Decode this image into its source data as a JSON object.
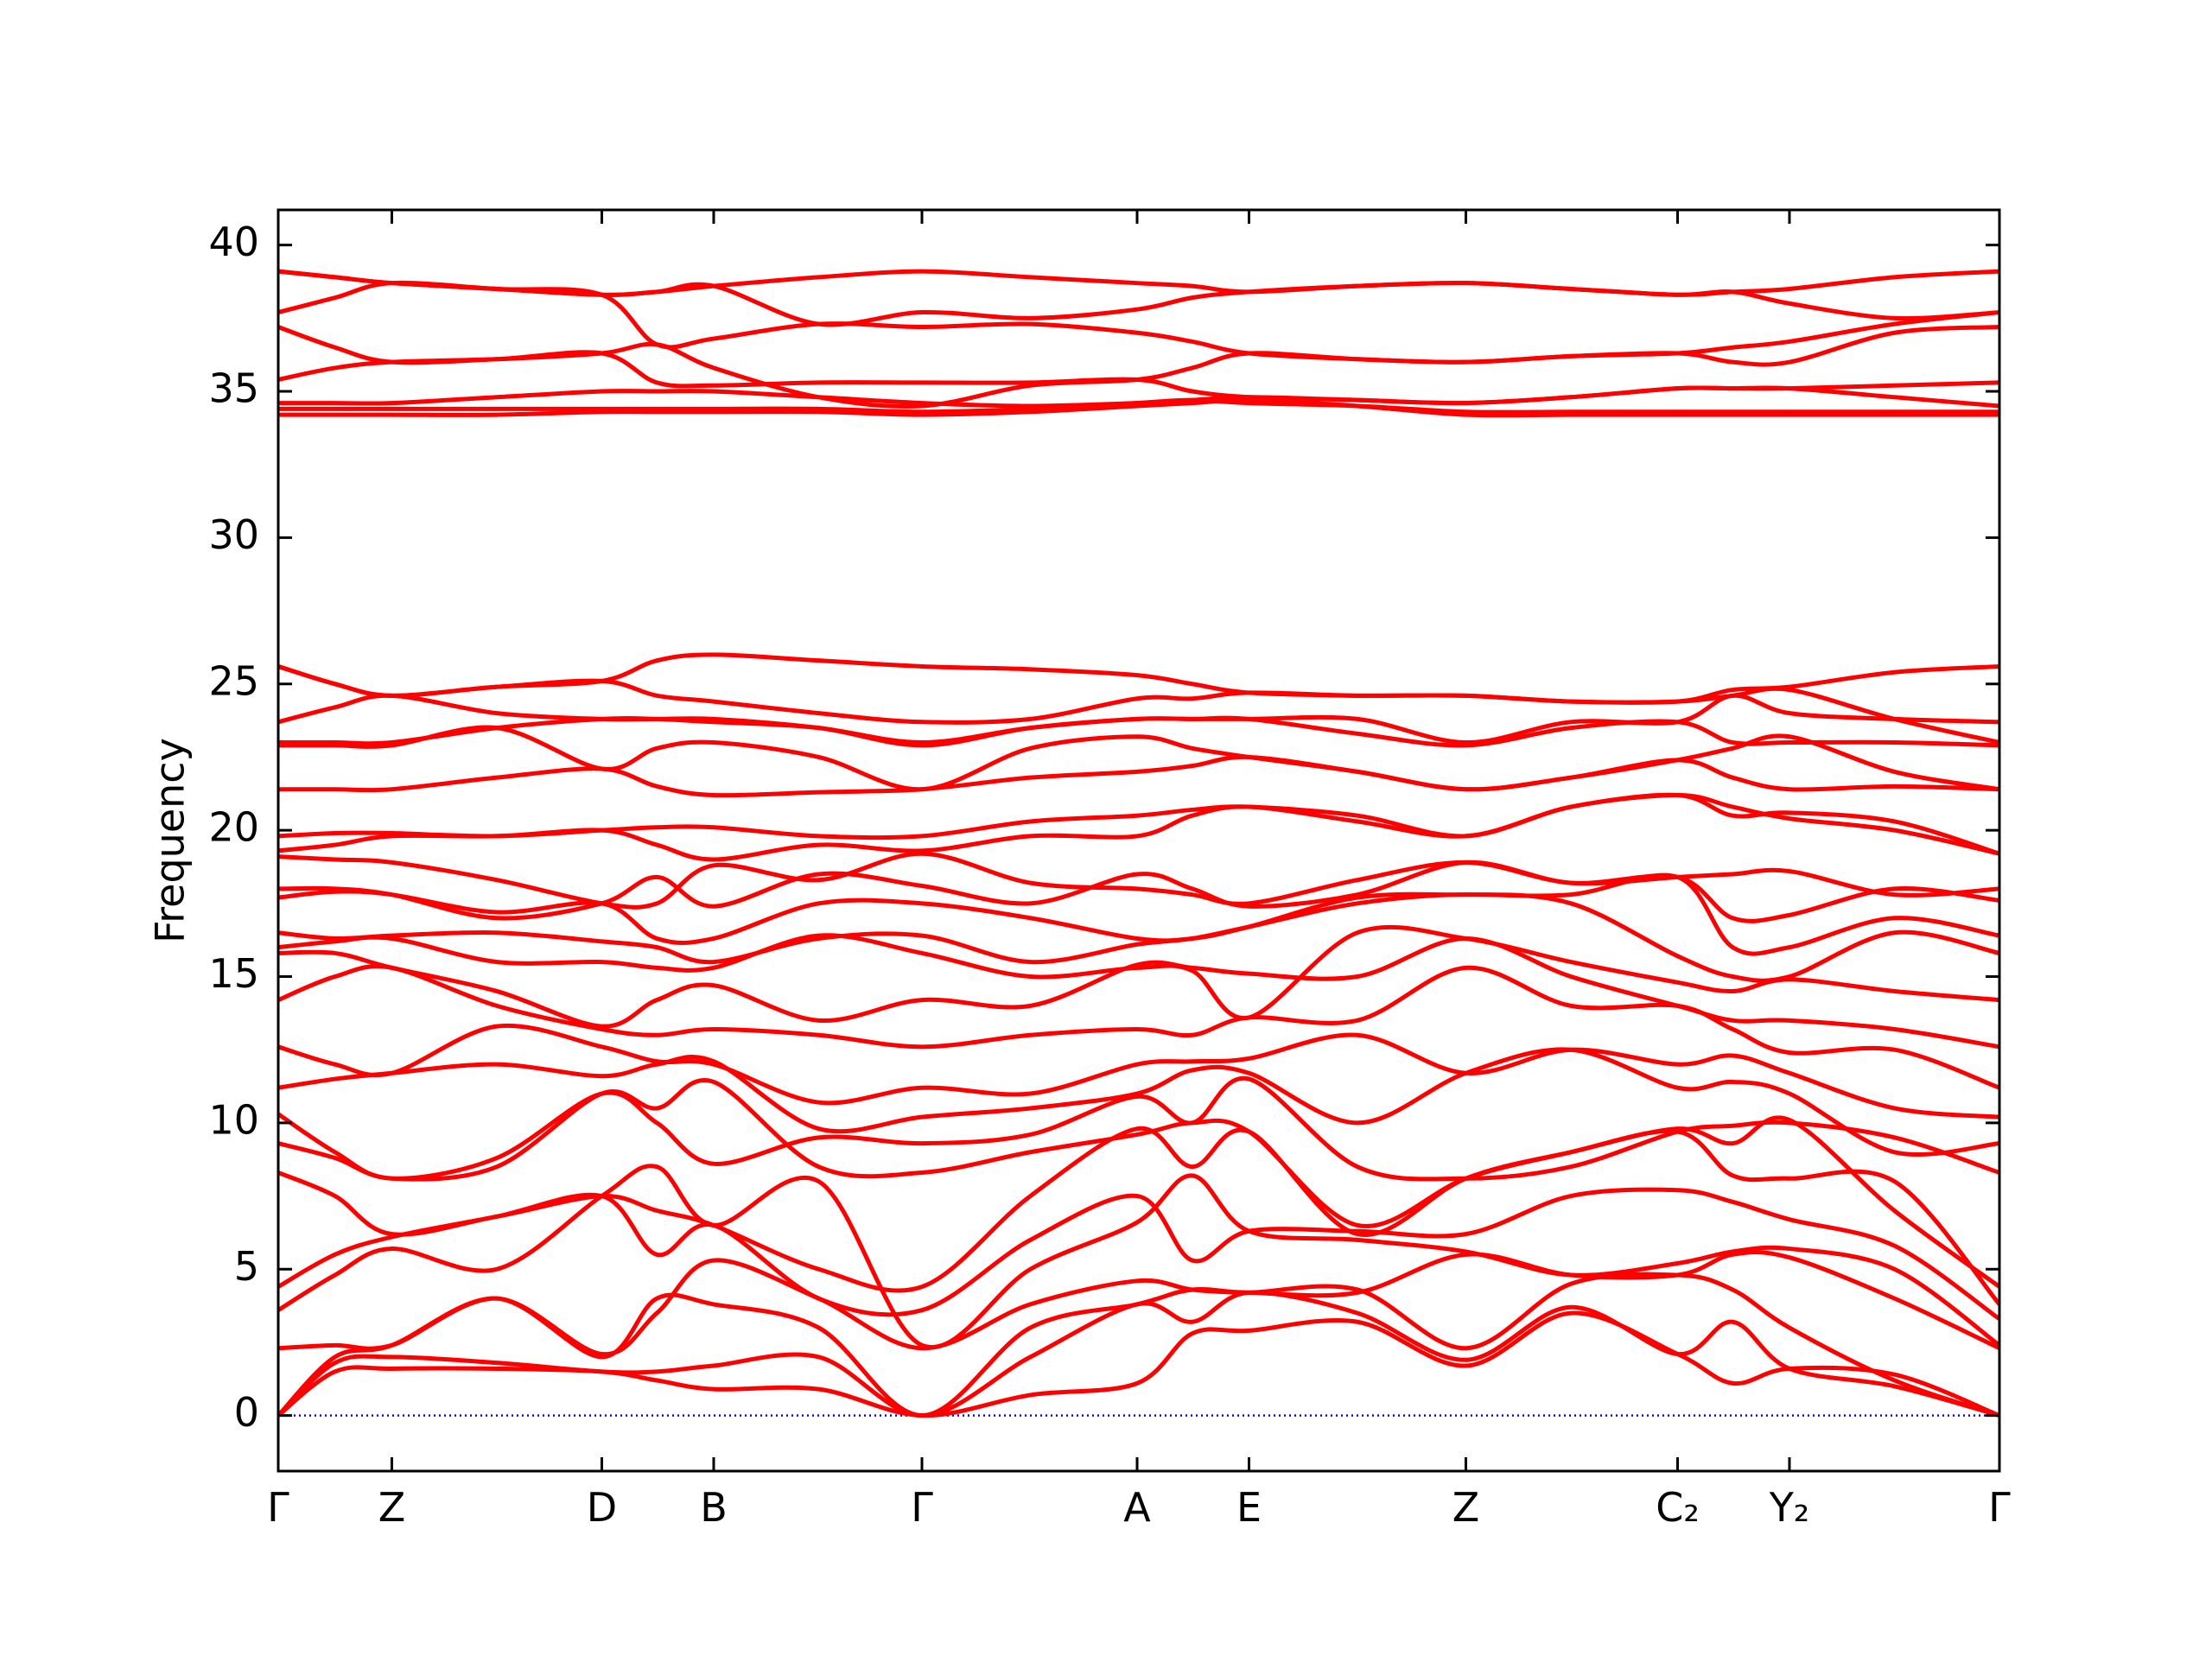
{
  "chart_data": {
    "type": "line",
    "ylabel": "Frequency",
    "color": "#ff0000",
    "x": [
      0,
      0.033,
      0.066,
      0.127,
      0.188,
      0.22,
      0.253,
      0.314,
      0.374,
      0.437,
      0.499,
      0.531,
      0.564,
      0.627,
      0.69,
      0.751,
      0.813,
      0.845,
      0.878,
      0.939,
      1.0
    ],
    "xlim": [
      0,
      1.0
    ],
    "xticks": [
      {
        "value": 0,
        "label": "Γ"
      },
      {
        "value": 0.066,
        "label": "Z"
      },
      {
        "value": 0.188,
        "label": "D"
      },
      {
        "value": 0.253,
        "label": "B"
      },
      {
        "value": 0.374,
        "label": "Γ"
      },
      {
        "value": 0.499,
        "label": "A"
      },
      {
        "value": 0.564,
        "label": "E"
      },
      {
        "value": 0.69,
        "label": "Z"
      },
      {
        "value": 0.813,
        "label": "C₂"
      },
      {
        "value": 0.878,
        "label": "Y₂"
      },
      {
        "value": 1.0,
        "label": "Γ"
      }
    ],
    "ylim": [
      -1.9,
      41.2
    ],
    "yticks": [
      0,
      5,
      10,
      15,
      20,
      25,
      30,
      35,
      40
    ],
    "hline": {
      "value": 0,
      "color": "#0000ff"
    },
    "series": [
      {
        "values": [
          0,
          1.5,
          1.6,
          1.6,
          1.5,
          1.2,
          0.9,
          0.9,
          0,
          0.7,
          1.1,
          2.8,
          2.9,
          3.2,
          1.7,
          3.5,
          2.1,
          1.1,
          1.6,
          1.4,
          0
        ]
      },
      {
        "values": [
          0,
          1.8,
          2.0,
          1.8,
          1.5,
          1.5,
          1.7,
          2.0,
          0,
          2.0,
          3.8,
          3.2,
          4.2,
          3.5,
          1.9,
          3.7,
          2.1,
          3.2,
          1.6,
          1.0,
          0
        ]
      },
      {
        "values": [
          0,
          2.0,
          2.4,
          4.0,
          2.0,
          4.0,
          3.8,
          3.0,
          0,
          3.0,
          3.8,
          4.3,
          4.2,
          4.3,
          2.3,
          4.5,
          4.8,
          4.3,
          3.0,
          1.2,
          0
        ]
      },
      {
        "values": [
          2.3,
          2.4,
          2.4,
          4.0,
          2.1,
          3.5,
          5.3,
          4.0,
          2.3,
          3.8,
          4.6,
          4.3,
          4.2,
          4.2,
          5.5,
          4.8,
          4.8,
          5.5,
          5.4,
          4.0,
          2.3
        ]
      },
      {
        "values": [
          3.6,
          4.8,
          5.7,
          5.0,
          7.5,
          8.5,
          6.5,
          8.0,
          2.4,
          5.0,
          6.6,
          8.2,
          6.3,
          6.0,
          5.6,
          4.8,
          5.2,
          5.6,
          5.7,
          5.0,
          2.4
        ]
      },
      {
        "values": [
          4.4,
          5.5,
          6.1,
          6.8,
          7.5,
          5.5,
          6.5,
          4.0,
          3.6,
          6.0,
          7.5,
          5.3,
          6.3,
          6.3,
          6.2,
          7.5,
          7.7,
          7.3,
          6.7,
          5.8,
          3.3
        ]
      },
      {
        "values": [
          8.3,
          7.5,
          6.2,
          6.8,
          7.5,
          7.0,
          6.5,
          5.0,
          4.4,
          7.5,
          9.8,
          8.5,
          9.7,
          6.2,
          8.1,
          9.0,
          9.7,
          8.2,
          8.1,
          8.0,
          3.8
        ]
      },
      {
        "values": [
          9.3,
          8.8,
          8.1,
          8.5,
          11.0,
          10.5,
          11.4,
          8.5,
          8.3,
          9.0,
          9.6,
          10.0,
          9.7,
          6.5,
          8.1,
          9.0,
          9.8,
          9.3,
          10.1,
          7.0,
          4.4
        ]
      },
      {
        "values": [
          10.3,
          9.0,
          8.1,
          8.8,
          11.0,
          10.0,
          8.6,
          9.5,
          9.3,
          9.6,
          10.9,
          10.0,
          11.5,
          8.5,
          8.1,
          8.5,
          9.7,
          9.9,
          10.0,
          9.5,
          8.3
        ]
      },
      {
        "values": [
          11.2,
          11.5,
          11.7,
          12.0,
          11.6,
          12.0,
          12.1,
          9.8,
          10.2,
          10.5,
          11.0,
          11.8,
          11.7,
          10.0,
          11.7,
          12.5,
          11.2,
          11.4,
          11.0,
          9.0,
          9.3
        ]
      },
      {
        "values": [
          12.6,
          12.0,
          11.7,
          13.3,
          12.6,
          12.1,
          12.0,
          10.7,
          11.2,
          11.0,
          12.0,
          12.1,
          12.2,
          13.0,
          11.7,
          12.5,
          12.0,
          12.3,
          11.7,
          10.5,
          10.2
        ]
      },
      {
        "values": [
          14.2,
          15.0,
          15.3,
          14.0,
          13.2,
          13.0,
          13.2,
          13.0,
          12.6,
          13.0,
          13.2,
          13.0,
          13.6,
          13.5,
          15.3,
          14.0,
          14.0,
          13.2,
          12.4,
          12.5,
          11.2
        ]
      },
      {
        "values": [
          15.8,
          15.8,
          15.3,
          14.5,
          13.3,
          14.2,
          14.7,
          13.5,
          14.2,
          14.0,
          15.4,
          15.3,
          15.1,
          15.0,
          16.3,
          15.0,
          14.0,
          13.5,
          13.5,
          13.2,
          12.6
        ]
      },
      {
        "values": [
          16.0,
          16.2,
          16.3,
          15.5,
          15.5,
          15.3,
          15.3,
          16.4,
          15.8,
          15.0,
          15.3,
          15.2,
          13.6,
          16.5,
          16.3,
          15.5,
          14.8,
          14.5,
          14.9,
          14.5,
          14.2
        ]
      },
      {
        "values": [
          16.5,
          16.3,
          16.4,
          16.5,
          16.2,
          16.0,
          15.5,
          16.3,
          16.4,
          15.5,
          16.1,
          16.3,
          16.7,
          17.5,
          17.8,
          17.5,
          15.7,
          15.0,
          15.0,
          16.5,
          15.8
        ]
      },
      {
        "values": [
          17.7,
          17.9,
          17.8,
          17.2,
          17.5,
          16.3,
          16.3,
          17.5,
          17.5,
          17.0,
          16.3,
          16.3,
          16.7,
          17.7,
          17.8,
          17.8,
          18.4,
          16.0,
          16.0,
          17.0,
          16.4
        ]
      },
      {
        "values": [
          18.0,
          18.0,
          17.8,
          17.0,
          17.5,
          18.4,
          17.4,
          18.5,
          18.1,
          17.5,
          18.5,
          18.0,
          17.4,
          17.8,
          18.9,
          18.2,
          18.4,
          17.0,
          17.1,
          18.0,
          17.6
        ]
      },
      {
        "values": [
          19.1,
          19.0,
          18.9,
          18.3,
          17.5,
          17.5,
          18.8,
          18.3,
          19.2,
          18.2,
          18.0,
          17.8,
          17.5,
          18.3,
          18.9,
          18.2,
          18.4,
          18.5,
          18.6,
          17.8,
          18.0
        ]
      },
      {
        "values": [
          19.3,
          19.5,
          19.8,
          19.8,
          20.0,
          19.5,
          19.0,
          19.5,
          19.3,
          19.8,
          19.8,
          20.5,
          20.8,
          20.3,
          19.8,
          20.8,
          21.2,
          20.8,
          20.4,
          20.0,
          19.2
        ]
      },
      {
        "values": [
          19.8,
          19.9,
          19.9,
          19.8,
          20.0,
          20.1,
          20.1,
          19.8,
          19.8,
          20.3,
          20.5,
          20.7,
          20.8,
          20.5,
          19.8,
          20.8,
          21.2,
          20.5,
          20.6,
          20.3,
          19.2
        ]
      },
      {
        "values": [
          21.4,
          21.4,
          21.4,
          21.8,
          22.1,
          21.5,
          21.2,
          21.3,
          21.4,
          21.8,
          22.0,
          22.2,
          22.5,
          22.0,
          21.4,
          21.8,
          22.4,
          21.8,
          21.4,
          21.5,
          21.4
        ]
      },
      {
        "values": [
          22.9,
          22.9,
          22.9,
          23.5,
          22.1,
          22.8,
          23.0,
          22.5,
          21.4,
          22.8,
          23.2,
          22.8,
          22.5,
          22.0,
          21.4,
          21.8,
          22.4,
          22.8,
          23.2,
          22.0,
          21.4
        ]
      },
      {
        "values": [
          23.0,
          23.0,
          23.0,
          23.5,
          23.8,
          23.8,
          23.7,
          23.5,
          22.9,
          23.5,
          23.8,
          23.8,
          23.8,
          23.3,
          22.9,
          23.5,
          23.7,
          23.0,
          23.0,
          23.0,
          22.9
        ]
      },
      {
        "values": [
          23.7,
          24.2,
          24.6,
          24.0,
          23.8,
          23.8,
          23.8,
          23.5,
          23.0,
          23.5,
          23.8,
          23.8,
          23.8,
          23.8,
          23.0,
          23.7,
          23.7,
          24.6,
          24.0,
          23.8,
          23.7
        ]
      },
      {
        "values": [
          25.6,
          25.0,
          24.6,
          24.9,
          25.1,
          24.6,
          24.4,
          24.0,
          23.7,
          23.8,
          24.5,
          24.5,
          24.7,
          24.6,
          24.6,
          24.4,
          24.4,
          24.6,
          24.8,
          23.8,
          23.0
        ]
      },
      {
        "values": [
          25.6,
          25.0,
          24.6,
          24.9,
          25.1,
          25.8,
          26.0,
          25.8,
          25.6,
          25.5,
          25.3,
          25.0,
          24.7,
          24.6,
          24.6,
          24.4,
          24.4,
          24.8,
          24.9,
          25.4,
          25.6
        ]
      },
      {
        "values": [
          34.2,
          34.2,
          34.2,
          34.2,
          34.3,
          34.3,
          34.3,
          34.3,
          34.2,
          34.3,
          34.5,
          34.6,
          34.7,
          34.5,
          34.2,
          34.2,
          34.2,
          34.2,
          34.2,
          34.2,
          34.2
        ]
      },
      {
        "values": [
          34.4,
          34.4,
          34.4,
          34.4,
          34.4,
          34.4,
          34.4,
          34.4,
          34.3,
          34.4,
          34.6,
          34.7,
          34.6,
          34.5,
          34.3,
          34.3,
          34.3,
          34.3,
          34.3,
          34.3,
          34.3
        ]
      },
      {
        "values": [
          34.6,
          34.6,
          34.6,
          34.8,
          35.0,
          35.0,
          35.0,
          34.8,
          34.6,
          34.5,
          34.6,
          34.7,
          34.8,
          34.7,
          34.6,
          34.8,
          35.1,
          35.1,
          35.1,
          34.8,
          34.5
        ]
      },
      {
        "values": [
          35.4,
          35.8,
          36.0,
          36.1,
          36.3,
          35.3,
          35.2,
          35.3,
          35.3,
          35.3,
          35.4,
          35.0,
          34.8,
          34.7,
          34.6,
          34.8,
          35.1,
          35.1,
          35.1,
          35.2,
          35.3
        ]
      },
      {
        "values": [
          37.2,
          36.5,
          36.0,
          36.1,
          36.3,
          36.6,
          35.8,
          34.8,
          34.5,
          35.2,
          35.4,
          35.8,
          36.3,
          36.1,
          36.0,
          36.2,
          36.3,
          36.5,
          36.7,
          37.3,
          37.7
        ]
      },
      {
        "values": [
          37.7,
          38.2,
          38.7,
          38.5,
          38.3,
          36.6,
          36.8,
          37.3,
          37.2,
          37.3,
          37.0,
          36.7,
          36.3,
          36.1,
          36.0,
          36.2,
          36.3,
          36.0,
          36.0,
          37.0,
          37.2
        ]
      },
      {
        "values": [
          39.1,
          38.9,
          38.7,
          38.5,
          38.3,
          38.4,
          38.6,
          37.3,
          37.7,
          37.5,
          37.8,
          38.2,
          38.4,
          38.6,
          38.7,
          38.5,
          38.3,
          38.4,
          38.0,
          37.5,
          37.7
        ]
      },
      {
        "values": [
          39.1,
          38.9,
          38.7,
          38.5,
          38.3,
          38.4,
          38.6,
          38.9,
          39.1,
          38.9,
          38.7,
          38.6,
          38.4,
          38.6,
          38.7,
          38.5,
          38.3,
          38.4,
          38.5,
          38.9,
          39.1
        ]
      }
    ]
  }
}
